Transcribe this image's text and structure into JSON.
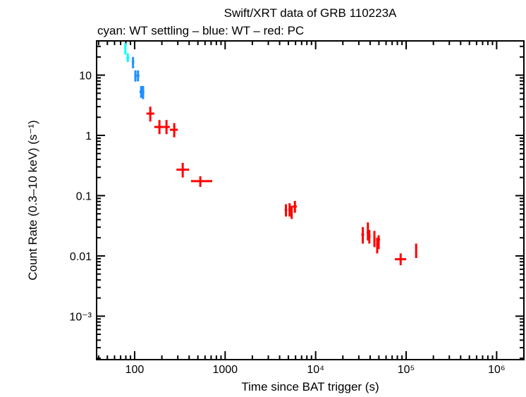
{
  "chart_data": {
    "type": "scatter",
    "title": "Swift/XRT data of GRB 110223A",
    "subtitle": "cyan: WT settling – blue: WT – red: PC",
    "xlabel": "Time since BAT trigger (s)",
    "ylabel": "Count Rate (0.3–10 keV) (s⁻¹)",
    "xscale": "log",
    "yscale": "log",
    "xlim": [
      38,
      2000000
    ],
    "ylim": [
      0.00019,
      37
    ],
    "grid": false,
    "xticks": [
      {
        "v": 100,
        "label": "100"
      },
      {
        "v": 1000,
        "label": "1000"
      },
      {
        "v": 10000,
        "label": "10⁴"
      },
      {
        "v": 100000,
        "label": "10⁵"
      },
      {
        "v": 1000000,
        "label": "10⁶"
      }
    ],
    "yticks": [
      {
        "v": 10,
        "label": "10"
      },
      {
        "v": 1,
        "label": "1"
      },
      {
        "v": 0.1,
        "label": "0.1"
      },
      {
        "v": 0.01,
        "label": "0.01"
      },
      {
        "v": 0.001,
        "label": "10⁻³"
      }
    ],
    "series": [
      {
        "name": "WT settling",
        "color": "#00ffff",
        "points": [
          {
            "t": 79,
            "tlo": 78,
            "thi": 80,
            "r": 27,
            "rlo": 22,
            "rhi": 34
          },
          {
            "t": 84,
            "tlo": 81,
            "thi": 87,
            "r": 19.4,
            "rlo": 16.5,
            "rhi": 23
          }
        ]
      },
      {
        "name": "WT",
        "color": "#1e90ff",
        "points": [
          {
            "t": 96,
            "tlo": 93,
            "thi": 99,
            "r": 16.5,
            "rlo": 13,
            "rhi": 20
          },
          {
            "t": 102,
            "tlo": 99,
            "thi": 105,
            "r": 9.6,
            "rlo": 7.8,
            "rhi": 12
          },
          {
            "t": 109,
            "tlo": 105,
            "thi": 113,
            "r": 9.8,
            "rlo": 7.9,
            "rhi": 12
          },
          {
            "t": 118,
            "tlo": 113,
            "thi": 122,
            "r": 5.3,
            "rlo": 4.2,
            "rhi": 6.6
          },
          {
            "t": 124,
            "tlo": 120,
            "thi": 128,
            "r": 5.3,
            "rlo": 4.0,
            "rhi": 6.6
          }
        ]
      },
      {
        "name": "PC",
        "color": "#ff0000",
        "points": [
          {
            "t": 149,
            "tlo": 135,
            "thi": 165,
            "r": 2.3,
            "rlo": 1.7,
            "rhi": 3.0
          },
          {
            "t": 188,
            "tlo": 165,
            "thi": 210,
            "r": 1.38,
            "rlo": 1.05,
            "rhi": 1.8
          },
          {
            "t": 225,
            "tlo": 210,
            "thi": 245,
            "r": 1.38,
            "rlo": 1.05,
            "rhi": 1.8
          },
          {
            "t": 274,
            "tlo": 245,
            "thi": 300,
            "r": 1.24,
            "rlo": 0.93,
            "rhi": 1.6
          },
          {
            "t": 340,
            "tlo": 290,
            "thi": 400,
            "r": 0.27,
            "rlo": 0.2,
            "rhi": 0.35
          },
          {
            "t": 532,
            "tlo": 420,
            "thi": 720,
            "r": 0.174,
            "rlo": 0.14,
            "rhi": 0.21
          },
          {
            "t": 4700,
            "tlo": 4550,
            "thi": 4850,
            "r": 0.058,
            "rlo": 0.045,
            "rhi": 0.072
          },
          {
            "t": 5160,
            "tlo": 5000,
            "thi": 5320,
            "r": 0.059,
            "rlo": 0.045,
            "rhi": 0.075
          },
          {
            "t": 5440,
            "tlo": 5320,
            "thi": 5560,
            "r": 0.053,
            "rlo": 0.041,
            "rhi": 0.068
          },
          {
            "t": 5900,
            "tlo": 5600,
            "thi": 6200,
            "r": 0.066,
            "rlo": 0.052,
            "rhi": 0.082
          },
          {
            "t": 33200,
            "tlo": 32000,
            "thi": 34400,
            "r": 0.0225,
            "rlo": 0.016,
            "rhi": 0.03
          },
          {
            "t": 37800,
            "tlo": 36600,
            "thi": 39000,
            "r": 0.0244,
            "rlo": 0.018,
            "rhi": 0.036
          },
          {
            "t": 39200,
            "tlo": 38000,
            "thi": 40400,
            "r": 0.021,
            "rlo": 0.016,
            "rhi": 0.027
          },
          {
            "t": 44600,
            "tlo": 43500,
            "thi": 45700,
            "r": 0.0186,
            "rlo": 0.014,
            "rhi": 0.026
          },
          {
            "t": 47900,
            "tlo": 46700,
            "thi": 49100,
            "r": 0.0163,
            "rlo": 0.011,
            "rhi": 0.02
          },
          {
            "t": 49700,
            "tlo": 48000,
            "thi": 51500,
            "r": 0.0186,
            "rlo": 0.013,
            "rhi": 0.022
          },
          {
            "t": 87000,
            "tlo": 75000,
            "thi": 100000,
            "r": 0.0088,
            "rlo": 0.007,
            "rhi": 0.011
          },
          {
            "t": 129000,
            "tlo": 127000,
            "thi": 131000,
            "r": 0.0121,
            "rlo": 0.0092,
            "rhi": 0.016
          }
        ]
      }
    ]
  }
}
